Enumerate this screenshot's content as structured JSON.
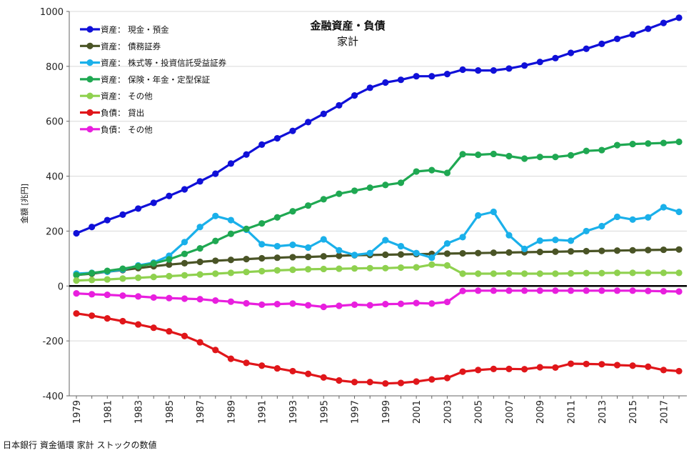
{
  "chart_data": {
    "type": "line",
    "title": "金融資産・負債",
    "subtitle": "家計",
    "ylabel": "金額 [兆円]",
    "xlabel": "",
    "ylim": [
      -400,
      1000
    ],
    "yticks": [
      -400,
      -200,
      0,
      200,
      400,
      600,
      800,
      1000
    ],
    "x": [
      1979,
      1980,
      1981,
      1982,
      1983,
      1984,
      1985,
      1986,
      1987,
      1988,
      1989,
      1990,
      1991,
      1992,
      1993,
      1994,
      1995,
      1996,
      1997,
      1998,
      1999,
      2000,
      2001,
      2002,
      2003,
      2004,
      2005,
      2006,
      2007,
      2008,
      2009,
      2010,
      2011,
      2012,
      2013,
      2014,
      2015,
      2016,
      2017,
      2018
    ],
    "xticks": [
      "1979",
      "1981",
      "1983",
      "1985",
      "1987",
      "1989",
      "1991",
      "1993",
      "1995",
      "1997",
      "1999",
      "2001",
      "2003",
      "2005",
      "2007",
      "2009",
      "2011",
      "2013",
      "2015",
      "2017"
    ],
    "grid": "horizontal",
    "legend_position": "top-left",
    "series": [
      {
        "name": "資産： 現金・預金",
        "color": "#1010d8",
        "values": [
          192,
          215,
          240,
          260,
          282,
          303,
          328,
          352,
          381,
          409,
          446,
          479,
          515,
          538,
          565,
          597,
          627,
          658,
          694,
          722,
          741,
          751,
          764,
          764,
          772,
          788,
          785,
          785,
          792,
          803,
          816,
          830,
          849,
          864,
          882,
          900,
          916,
          937,
          958,
          977
        ]
      },
      {
        "name": "資産： 債務証券",
        "color": "#4a5426",
        "values": [
          40,
          45,
          52,
          58,
          65,
          72,
          78,
          83,
          88,
          92,
          95,
          98,
          101,
          103,
          105,
          106,
          108,
          110,
          112,
          113,
          114,
          115,
          116,
          117,
          118,
          119,
          120,
          121,
          122,
          123,
          124,
          125,
          126,
          127,
          128,
          129,
          130,
          131,
          132,
          133
        ]
      },
      {
        "name": "資産： 株式等・投資信託受益証券",
        "color": "#1ab0ea",
        "values": [
          45,
          48,
          52,
          60,
          75,
          85,
          110,
          160,
          215,
          255,
          240,
          205,
          152,
          145,
          150,
          140,
          170,
          130,
          113,
          120,
          167,
          145,
          120,
          103,
          155,
          178,
          257,
          270,
          185,
          135,
          165,
          168,
          165,
          200,
          218,
          252,
          242,
          250,
          287,
          270
        ]
      },
      {
        "name": "資産： 保険・年金・定型保証",
        "color": "#1fa852",
        "values": [
          40,
          47,
          55,
          63,
          72,
          82,
          97,
          117,
          137,
          164,
          190,
          208,
          228,
          250,
          272,
          293,
          316,
          336,
          347,
          358,
          368,
          376,
          417,
          422,
          412,
          480,
          478,
          481,
          473,
          464,
          470,
          470,
          476,
          492,
          495,
          513,
          517,
          519,
          521,
          525
        ]
      },
      {
        "name": "資産： その他",
        "color": "#8fd14f",
        "values": [
          20,
          22,
          24,
          27,
          30,
          33,
          36,
          39,
          42,
          45,
          48,
          51,
          54,
          57,
          59,
          61,
          62,
          63,
          64,
          65,
          65,
          67,
          68,
          78,
          75,
          45,
          45,
          45,
          46,
          45,
          45,
          45,
          46,
          47,
          47,
          48,
          48,
          48,
          48,
          48
        ]
      },
      {
        "name": "負債： 貸出",
        "color": "#e0161a",
        "values": [
          -100,
          -108,
          -118,
          -128,
          -140,
          -152,
          -165,
          -182,
          -205,
          -233,
          -265,
          -280,
          -290,
          -300,
          -310,
          -320,
          -333,
          -344,
          -350,
          -350,
          -355,
          -353,
          -348,
          -340,
          -335,
          -312,
          -306,
          -302,
          -302,
          -303,
          -296,
          -297,
          -283,
          -284,
          -285,
          -288,
          -290,
          -294,
          -306,
          -310
        ]
      },
      {
        "name": "負債： その他",
        "color": "#e81fde",
        "values": [
          -27,
          -30,
          -32,
          -35,
          -38,
          -42,
          -44,
          -46,
          -48,
          -53,
          -57,
          -63,
          -68,
          -66,
          -64,
          -70,
          -76,
          -72,
          -68,
          -70,
          -66,
          -65,
          -62,
          -64,
          -58,
          -18,
          -17,
          -17,
          -17,
          -17,
          -17,
          -17,
          -17,
          -17,
          -17,
          -17,
          -17,
          -18,
          -19,
          -20
        ]
      }
    ]
  },
  "footer": "日本銀行 資金循環 家計 ストックの数値"
}
